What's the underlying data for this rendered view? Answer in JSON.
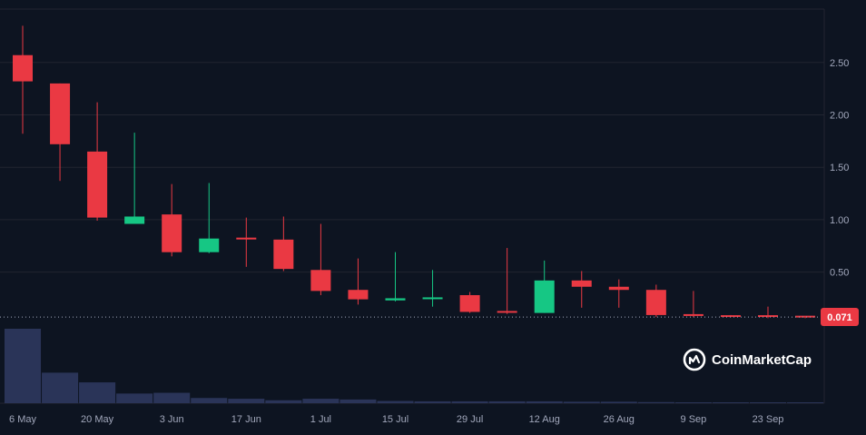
{
  "chart_data": {
    "type": "candlestick",
    "x_ticks": [
      "6 May",
      "20 May",
      "3 Jun",
      "17 Jun",
      "1 Jul",
      "15 Jul",
      "29 Jul",
      "12 Aug",
      "26 Aug",
      "9 Sep",
      "23 Sep"
    ],
    "y_ticks": [
      "0.50",
      "1.00",
      "1.50",
      "2.00",
      "2.50"
    ],
    "ylim": [
      0,
      2.9
    ],
    "current_price": "0.071",
    "colors": {
      "up": "#16c784",
      "down": "#ea3943",
      "volume": "#2a3458",
      "background": "#0d1421",
      "grid": "#222531",
      "price_tag": "#ea3943"
    },
    "candles": [
      {
        "open": 2.57,
        "close": 2.32,
        "high": 2.85,
        "low": 1.82
      },
      {
        "open": 2.3,
        "close": 1.72,
        "high": 2.3,
        "low": 1.37
      },
      {
        "open": 1.65,
        "close": 1.02,
        "high": 2.12,
        "low": 0.99
      },
      {
        "open": 0.96,
        "close": 1.03,
        "high": 1.83,
        "low": 0.96
      },
      {
        "open": 1.05,
        "close": 0.69,
        "high": 1.34,
        "low": 0.65
      },
      {
        "open": 0.69,
        "close": 0.82,
        "high": 1.35,
        "low": 0.68
      },
      {
        "open": 0.82,
        "close": 0.81,
        "high": 1.02,
        "low": 0.55
      },
      {
        "open": 0.81,
        "close": 0.53,
        "high": 1.03,
        "low": 0.51
      },
      {
        "open": 0.52,
        "close": 0.32,
        "high": 0.96,
        "low": 0.28
      },
      {
        "open": 0.33,
        "close": 0.24,
        "high": 0.63,
        "low": 0.19
      },
      {
        "open": 0.23,
        "close": 0.25,
        "high": 0.69,
        "low": 0.22
      },
      {
        "open": 0.24,
        "close": 0.25,
        "high": 0.52,
        "low": 0.17
      },
      {
        "open": 0.28,
        "close": 0.12,
        "high": 0.31,
        "low": 0.11
      },
      {
        "open": 0.12,
        "close": 0.11,
        "high": 0.73,
        "low": 0.1
      },
      {
        "open": 0.11,
        "close": 0.42,
        "high": 0.61,
        "low": 0.11
      },
      {
        "open": 0.42,
        "close": 0.36,
        "high": 0.51,
        "low": 0.16
      },
      {
        "open": 0.36,
        "close": 0.33,
        "high": 0.43,
        "low": 0.16
      },
      {
        "open": 0.33,
        "close": 0.09,
        "high": 0.38,
        "low": 0.07
      },
      {
        "open": 0.09,
        "close": 0.08,
        "high": 0.32,
        "low": 0.07
      },
      {
        "open": 0.08,
        "close": 0.075,
        "high": 0.09,
        "low": 0.07
      },
      {
        "open": 0.08,
        "close": 0.07,
        "high": 0.17,
        "low": 0.06
      },
      {
        "open": 0.075,
        "close": 0.071,
        "high": 0.08,
        "low": 0.06
      }
    ],
    "volume": [
      1.0,
      0.41,
      0.28,
      0.13,
      0.14,
      0.07,
      0.06,
      0.04,
      0.06,
      0.05,
      0.03,
      0.025,
      0.025,
      0.025,
      0.025,
      0.02,
      0.02,
      0.015,
      0.012,
      0.005,
      0.005,
      0.004
    ]
  },
  "brand": {
    "name": "CoinMarketCap",
    "icon": "coinmarketcap-logo-icon"
  }
}
